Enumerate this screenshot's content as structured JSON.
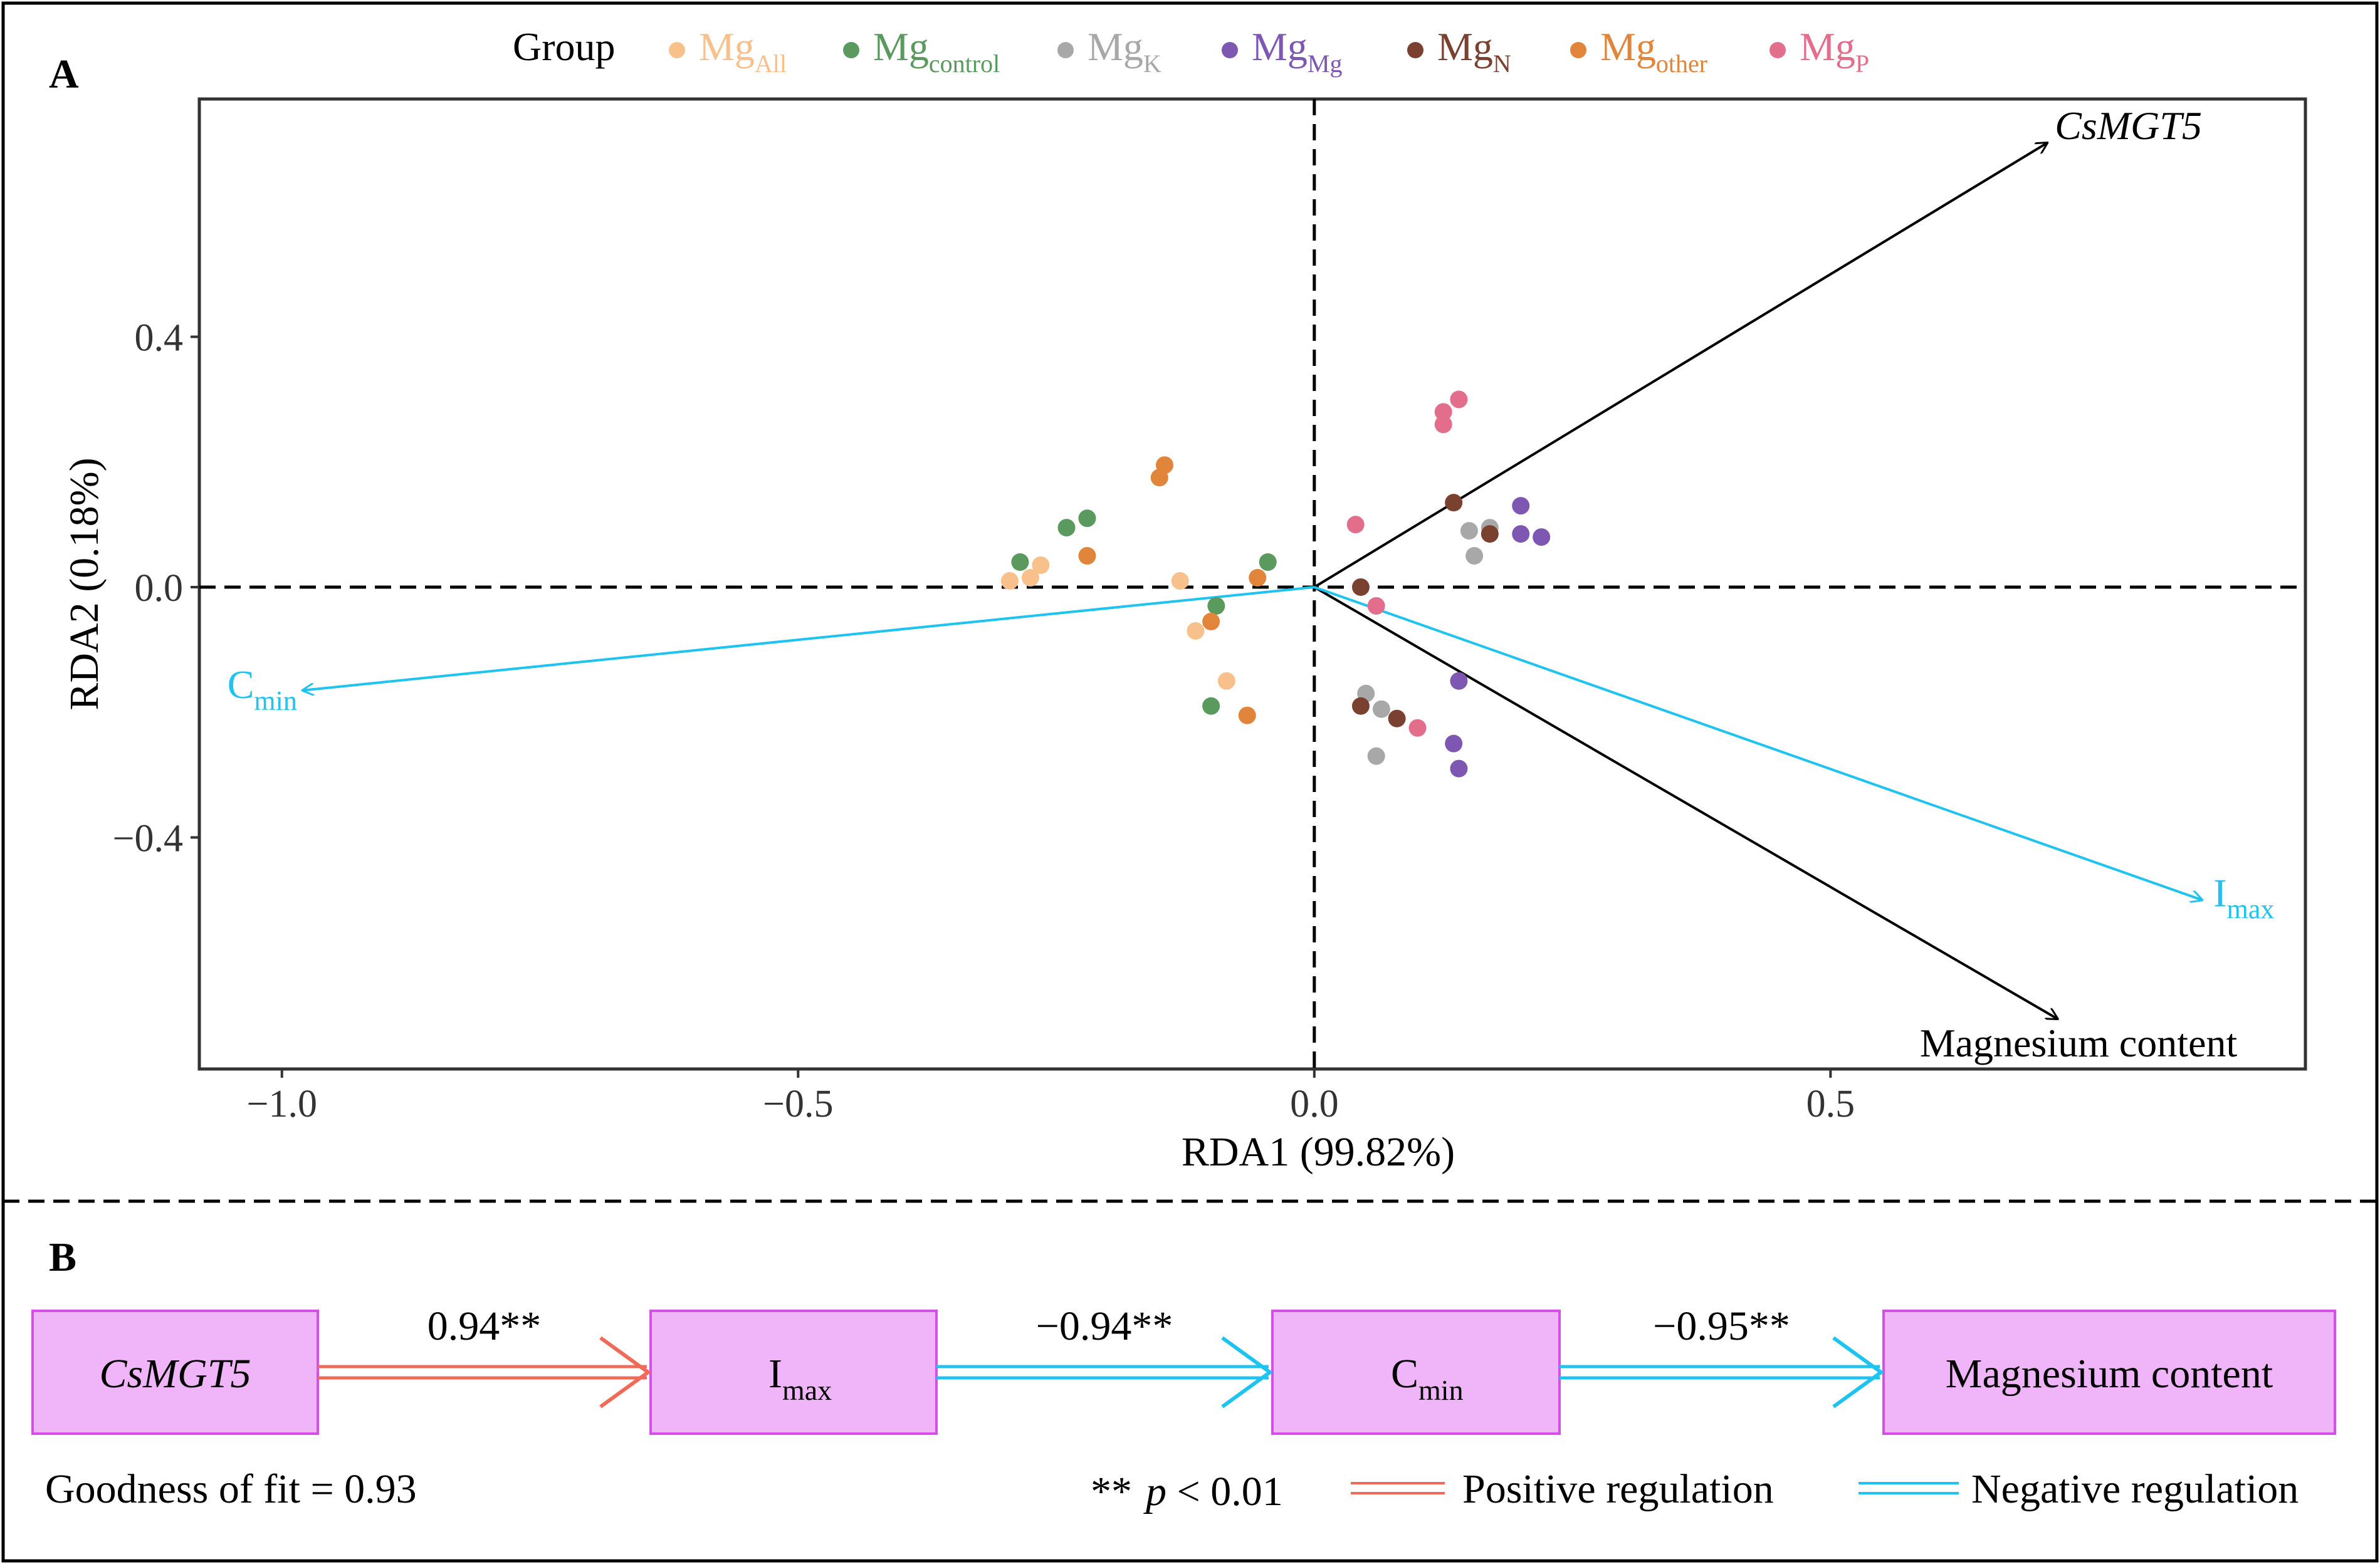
{
  "panel_a": {
    "label": "A"
  },
  "panel_b": {
    "label": "B"
  },
  "colors": {
    "Mg_All": "#f8c18c",
    "Mg_control": "#5a9a5e",
    "Mg_K": "#a8a8a8",
    "Mg_Mg": "#7e57b3",
    "Mg_N": "#7a4130",
    "Mg_other": "#e0853a",
    "Mg_P": "#e36e8b",
    "blue": "#1ec3f0",
    "red": "#f06a5a",
    "box_fill": "#f0b4f8",
    "box_stroke": "#d54ee8"
  },
  "chart_data": {
    "type": "scatter",
    "xlabel": "RDA1 (99.82%)",
    "ylabel": "RDA2 (0.18%)",
    "xlim": [
      -1.08,
      0.96
    ],
    "ylim": [
      -0.77,
      0.78
    ],
    "xticks": [
      {
        "value": -1.0,
        "label": "−1.0"
      },
      {
        "value": -0.5,
        "label": "−0.5"
      },
      {
        "value": 0.0,
        "label": "0.0"
      },
      {
        "value": 0.5,
        "label": "0.5"
      }
    ],
    "yticks": [
      {
        "value": 0.4,
        "label": "0.4"
      },
      {
        "value": 0.0,
        "label": "0.0"
      },
      {
        "value": -0.4,
        "label": "−0.4"
      }
    ],
    "legend": {
      "title": "Group",
      "position": "top",
      "entries": [
        {
          "key": "Mg_All",
          "base": "Mg",
          "sub": "All"
        },
        {
          "key": "Mg_control",
          "base": "Mg",
          "sub": "control"
        },
        {
          "key": "Mg_K",
          "base": "Mg",
          "sub": "K"
        },
        {
          "key": "Mg_Mg",
          "base": "Mg",
          "sub": "Mg"
        },
        {
          "key": "Mg_N",
          "base": "Mg",
          "sub": "N"
        },
        {
          "key": "Mg_other",
          "base": "Mg",
          "sub": "other"
        },
        {
          "key": "Mg_P",
          "base": "Mg",
          "sub": "P"
        }
      ]
    },
    "series": [
      {
        "name": "Mg_All",
        "points": [
          [
            -0.295,
            0.01
          ],
          [
            -0.275,
            0.015
          ],
          [
            -0.265,
            0.035
          ],
          [
            -0.13,
            0.01
          ],
          [
            -0.115,
            -0.07
          ],
          [
            -0.085,
            -0.15
          ]
        ]
      },
      {
        "name": "Mg_control",
        "points": [
          [
            -0.285,
            0.04
          ],
          [
            -0.24,
            0.095
          ],
          [
            -0.22,
            0.11
          ],
          [
            -0.095,
            -0.03
          ],
          [
            -0.1,
            -0.19
          ],
          [
            -0.045,
            0.04
          ]
        ]
      },
      {
        "name": "Mg_K",
        "points": [
          [
            0.15,
            0.09
          ],
          [
            0.17,
            0.095
          ],
          [
            0.155,
            0.05
          ],
          [
            0.05,
            -0.17
          ],
          [
            0.065,
            -0.195
          ],
          [
            0.06,
            -0.27
          ]
        ]
      },
      {
        "name": "Mg_Mg",
        "points": [
          [
            0.2,
            0.13
          ],
          [
            0.2,
            0.085
          ],
          [
            0.22,
            0.08
          ],
          [
            0.14,
            -0.15
          ],
          [
            0.135,
            -0.25
          ],
          [
            0.14,
            -0.29
          ]
        ]
      },
      {
        "name": "Mg_N",
        "points": [
          [
            0.135,
            0.135
          ],
          [
            0.17,
            0.085
          ],
          [
            0.045,
            0.0
          ],
          [
            0.045,
            -0.19
          ],
          [
            0.08,
            -0.21
          ]
        ]
      },
      {
        "name": "Mg_other",
        "points": [
          [
            -0.145,
            0.195
          ],
          [
            -0.15,
            0.175
          ],
          [
            -0.22,
            0.05
          ],
          [
            -0.1,
            -0.055
          ],
          [
            -0.055,
            0.015
          ],
          [
            -0.065,
            -0.205
          ]
        ]
      },
      {
        "name": "Mg_P",
        "points": [
          [
            0.125,
            0.28
          ],
          [
            0.14,
            0.3
          ],
          [
            0.125,
            0.26
          ],
          [
            0.04,
            0.1
          ],
          [
            0.06,
            -0.03
          ],
          [
            0.1,
            -0.225
          ]
        ]
      }
    ],
    "arrows": [
      {
        "name": "CsMGT5",
        "x": 0.71,
        "y": 0.71,
        "color": "black",
        "italic": true
      },
      {
        "name": "Magnesium content",
        "x": 0.72,
        "y": -0.69,
        "color": "black"
      },
      {
        "name": "Imax",
        "x": 0.86,
        "y": -0.5,
        "color": "blue",
        "base": "I",
        "sub": "max"
      },
      {
        "name": "Cmin",
        "x": -0.98,
        "y": -0.165,
        "color": "blue",
        "base": "C",
        "sub": "min"
      }
    ]
  },
  "pathway": {
    "boxes": [
      {
        "name": "csmgt5",
        "text": "CsMGT5",
        "italic": true
      },
      {
        "name": "imax",
        "base": "I",
        "sub": "max"
      },
      {
        "name": "cmin",
        "base": "C",
        "sub": "min"
      },
      {
        "name": "magnesium-content",
        "text": "Magnesium content"
      }
    ],
    "links": [
      {
        "value": "0.94**",
        "type": "positive"
      },
      {
        "value": "−0.94**",
        "type": "negative"
      },
      {
        "value": "−0.95**",
        "type": "negative"
      }
    ],
    "goodness_of_fit": "Goodness of fit = 0.93",
    "sig_stars": "**",
    "sig_p": "p",
    "sig_rest": " < 0.01",
    "positive_label": "Positive regulation",
    "negative_label": "Negative regulation"
  }
}
